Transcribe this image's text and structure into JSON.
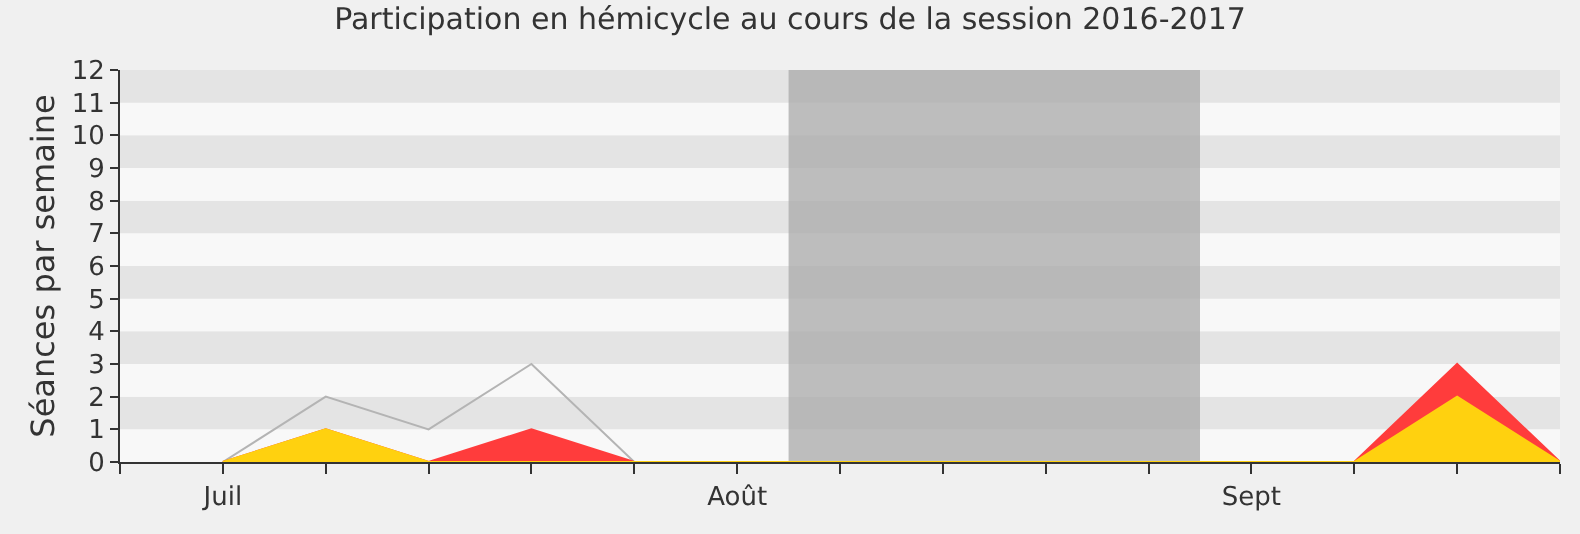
{
  "chart_data": {
    "type": "area",
    "title": "Participation en hémicycle au cours de la session 2016-2017",
    "ylabel": "Séances par semaine",
    "categories": [
      null,
      "Juil",
      null,
      null,
      null,
      null,
      "Août",
      null,
      null,
      null,
      null,
      "Sept",
      null,
      null,
      null
    ],
    "ylim": [
      0,
      12
    ],
    "yticks": [
      0,
      1,
      2,
      3,
      4,
      5,
      6,
      7,
      8,
      9,
      10,
      11,
      12
    ],
    "series": [
      {
        "type": "line",
        "color": "#b4b4b4",
        "values": [
          null,
          0,
          2,
          1,
          3,
          0,
          null,
          null,
          null,
          null,
          null,
          null,
          null,
          null,
          null
        ]
      },
      {
        "color": "#ff3c3c",
        "values": [
          null,
          0,
          1,
          0,
          1,
          0,
          0,
          0,
          0,
          0,
          0,
          0,
          0,
          3,
          0
        ]
      },
      {
        "color": "#ffd10f",
        "values": [
          null,
          0,
          1,
          0,
          0,
          0,
          0,
          0,
          0,
          0,
          0,
          0,
          0,
          2,
          0
        ]
      }
    ]
  }
}
